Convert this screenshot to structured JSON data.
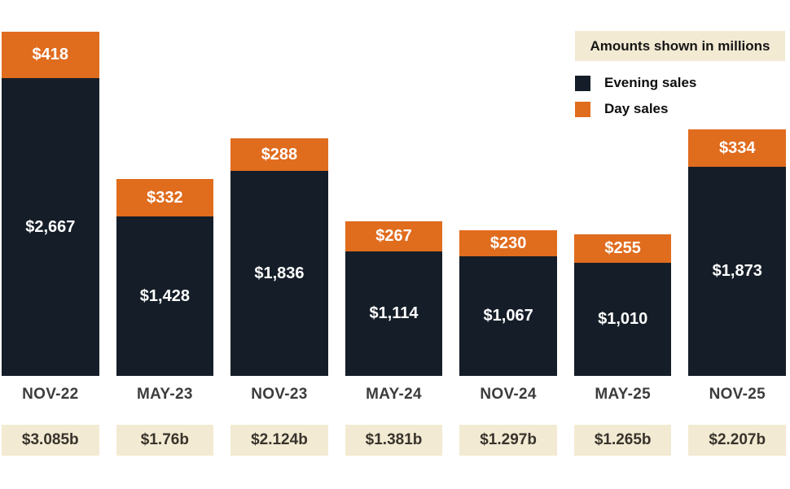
{
  "legend": {
    "note": "Amounts shown in millions",
    "items": [
      {
        "label": "Evening sales",
        "color": "#151E28"
      },
      {
        "label": "Day sales",
        "color": "#E06C1E"
      }
    ]
  },
  "chart_data": {
    "type": "bar",
    "stacked": true,
    "title": "",
    "units_note": "Amounts shown in millions",
    "legend_position": "top-right",
    "categories": [
      "NOV-22",
      "MAY-23",
      "NOV-23",
      "MAY-24",
      "NOV-24",
      "MAY-25",
      "NOV-25"
    ],
    "series": [
      {
        "name": "Evening sales",
        "color": "#151E28",
        "values": [
          2667,
          1428,
          1836,
          1114,
          1067,
          1010,
          1873
        ],
        "labels": [
          "$2,667",
          "$1,428",
          "$1,836",
          "$1,114",
          "$1,067",
          "$1,010",
          "$1,873"
        ]
      },
      {
        "name": "Day sales",
        "color": "#E06C1E",
        "values": [
          418,
          332,
          288,
          267,
          230,
          255,
          334
        ],
        "labels": [
          "$418",
          "$332",
          "$288",
          "$267",
          "$230",
          "$255",
          "$334"
        ]
      }
    ],
    "totals_labels": [
      "$3.085b",
      "$1.76b",
      "$2.124b",
      "$1.381b",
      "$1.297b",
      "$1.265b",
      "$2.207b"
    ],
    "totals_billions": [
      3.085,
      1.76,
      2.124,
      1.381,
      1.297,
      1.265,
      2.207
    ]
  },
  "colors": {
    "evening": "#151E28",
    "day": "#E06C1E",
    "cream": "#F3EAD3",
    "category_text": "#3C3C3C",
    "bar_value_text": "#FFFFFF"
  }
}
